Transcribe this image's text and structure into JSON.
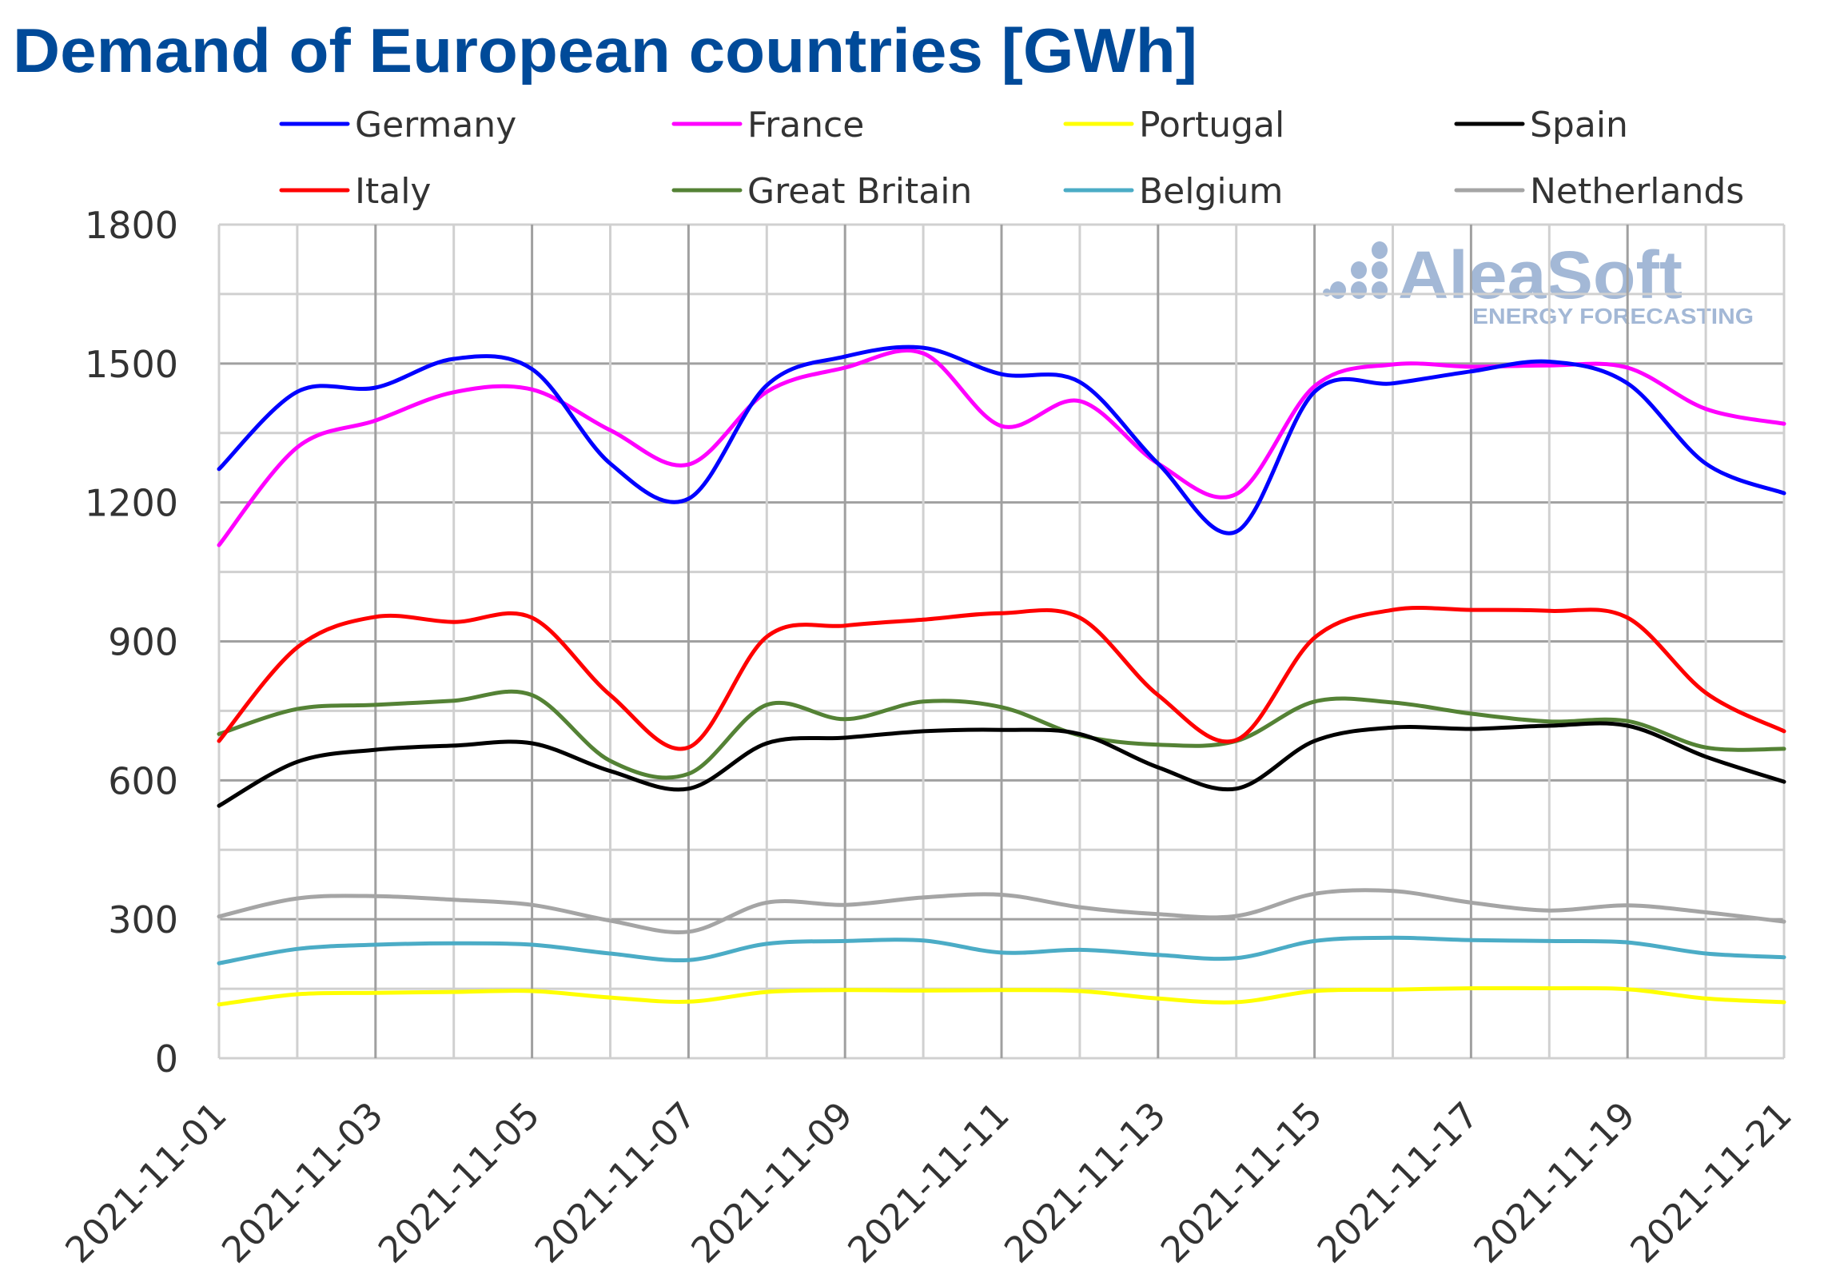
{
  "chart_data": {
    "type": "line",
    "title": "Demand of European countries [GWh]",
    "xlabel": "",
    "ylabel": "",
    "ylim": [
      0,
      1800
    ],
    "yticks": [
      "0",
      "300",
      "600",
      "900",
      "1200",
      "1500",
      "1800"
    ],
    "grid": true,
    "legend_position": "top",
    "x": [
      "2021-11-01",
      "2021-11-02",
      "2021-11-03",
      "2021-11-04",
      "2021-11-05",
      "2021-11-06",
      "2021-11-07",
      "2021-11-08",
      "2021-11-09",
      "2021-11-10",
      "2021-11-11",
      "2021-11-12",
      "2021-11-13",
      "2021-11-14",
      "2021-11-15",
      "2021-11-16",
      "2021-11-17",
      "2021-11-18",
      "2021-11-19",
      "2021-11-20",
      "2021-11-21"
    ],
    "xtick_labels": [
      "2021-11-01",
      "2021-11-03",
      "2021-11-05",
      "2021-11-07",
      "2021-11-09",
      "2021-11-11",
      "2021-11-13",
      "2021-11-15",
      "2021-11-17",
      "2021-11-19",
      "2021-11-21"
    ],
    "series": [
      {
        "name": "Germany",
        "color": "#0000FF",
        "values": [
          1272,
          1439,
          1448,
          1510,
          1488,
          1284,
          1208,
          1453,
          1515,
          1534,
          1477,
          1460,
          1284,
          1137,
          1439,
          1457,
          1483,
          1504,
          1457,
          1284,
          1220
        ]
      },
      {
        "name": "France",
        "color": "#FF00FF",
        "values": [
          1108,
          1319,
          1377,
          1438,
          1444,
          1356,
          1282,
          1439,
          1491,
          1522,
          1365,
          1419,
          1284,
          1218,
          1451,
          1498,
          1493,
          1496,
          1491,
          1402,
          1370
        ]
      },
      {
        "name": "Portugal",
        "color": "#FFFF00",
        "values": [
          116,
          138,
          141,
          143,
          145,
          131,
          122,
          143,
          147,
          146,
          147,
          145,
          129,
          121,
          145,
          148,
          151,
          151,
          149,
          129,
          121
        ]
      },
      {
        "name": "Spain",
        "color": "#000000",
        "values": [
          545,
          640,
          666,
          675,
          680,
          620,
          582,
          680,
          692,
          706,
          709,
          700,
          628,
          582,
          685,
          714,
          711,
          718,
          718,
          651,
          597
        ]
      },
      {
        "name": "Italy",
        "color": "#FF0000",
        "values": [
          685,
          887,
          953,
          942,
          951,
          784,
          671,
          910,
          934,
          947,
          961,
          951,
          784,
          687,
          908,
          968,
          968,
          966,
          951,
          789,
          706
        ]
      },
      {
        "name": "Great Britain",
        "color": "#548235",
        "values": [
          700,
          754,
          763,
          772,
          784,
          642,
          614,
          763,
          732,
          770,
          758,
          697,
          677,
          685,
          770,
          768,
          744,
          727,
          728,
          671,
          668
        ]
      },
      {
        "name": "Belgium",
        "color": "#4BACC6",
        "values": [
          205,
          236,
          245,
          248,
          245,
          226,
          212,
          247,
          253,
          254,
          228,
          234,
          223,
          216,
          253,
          260,
          255,
          253,
          250,
          226,
          218
        ]
      },
      {
        "name": "Netherlands",
        "color": "#A5A5A5",
        "values": [
          306,
          345,
          350,
          342,
          331,
          297,
          273,
          336,
          331,
          347,
          353,
          326,
          311,
          307,
          355,
          361,
          336,
          319,
          330,
          315,
          295
        ]
      }
    ]
  },
  "watermark": {
    "brand": "AleaSoft",
    "tagline": "ENERGY FORECASTING",
    "color": "#A3B8D6"
  },
  "colors": {
    "title": "#004A99",
    "grid_major": "#A0A0A0",
    "grid_minor": "#D0D0D0",
    "text": "#333333"
  }
}
